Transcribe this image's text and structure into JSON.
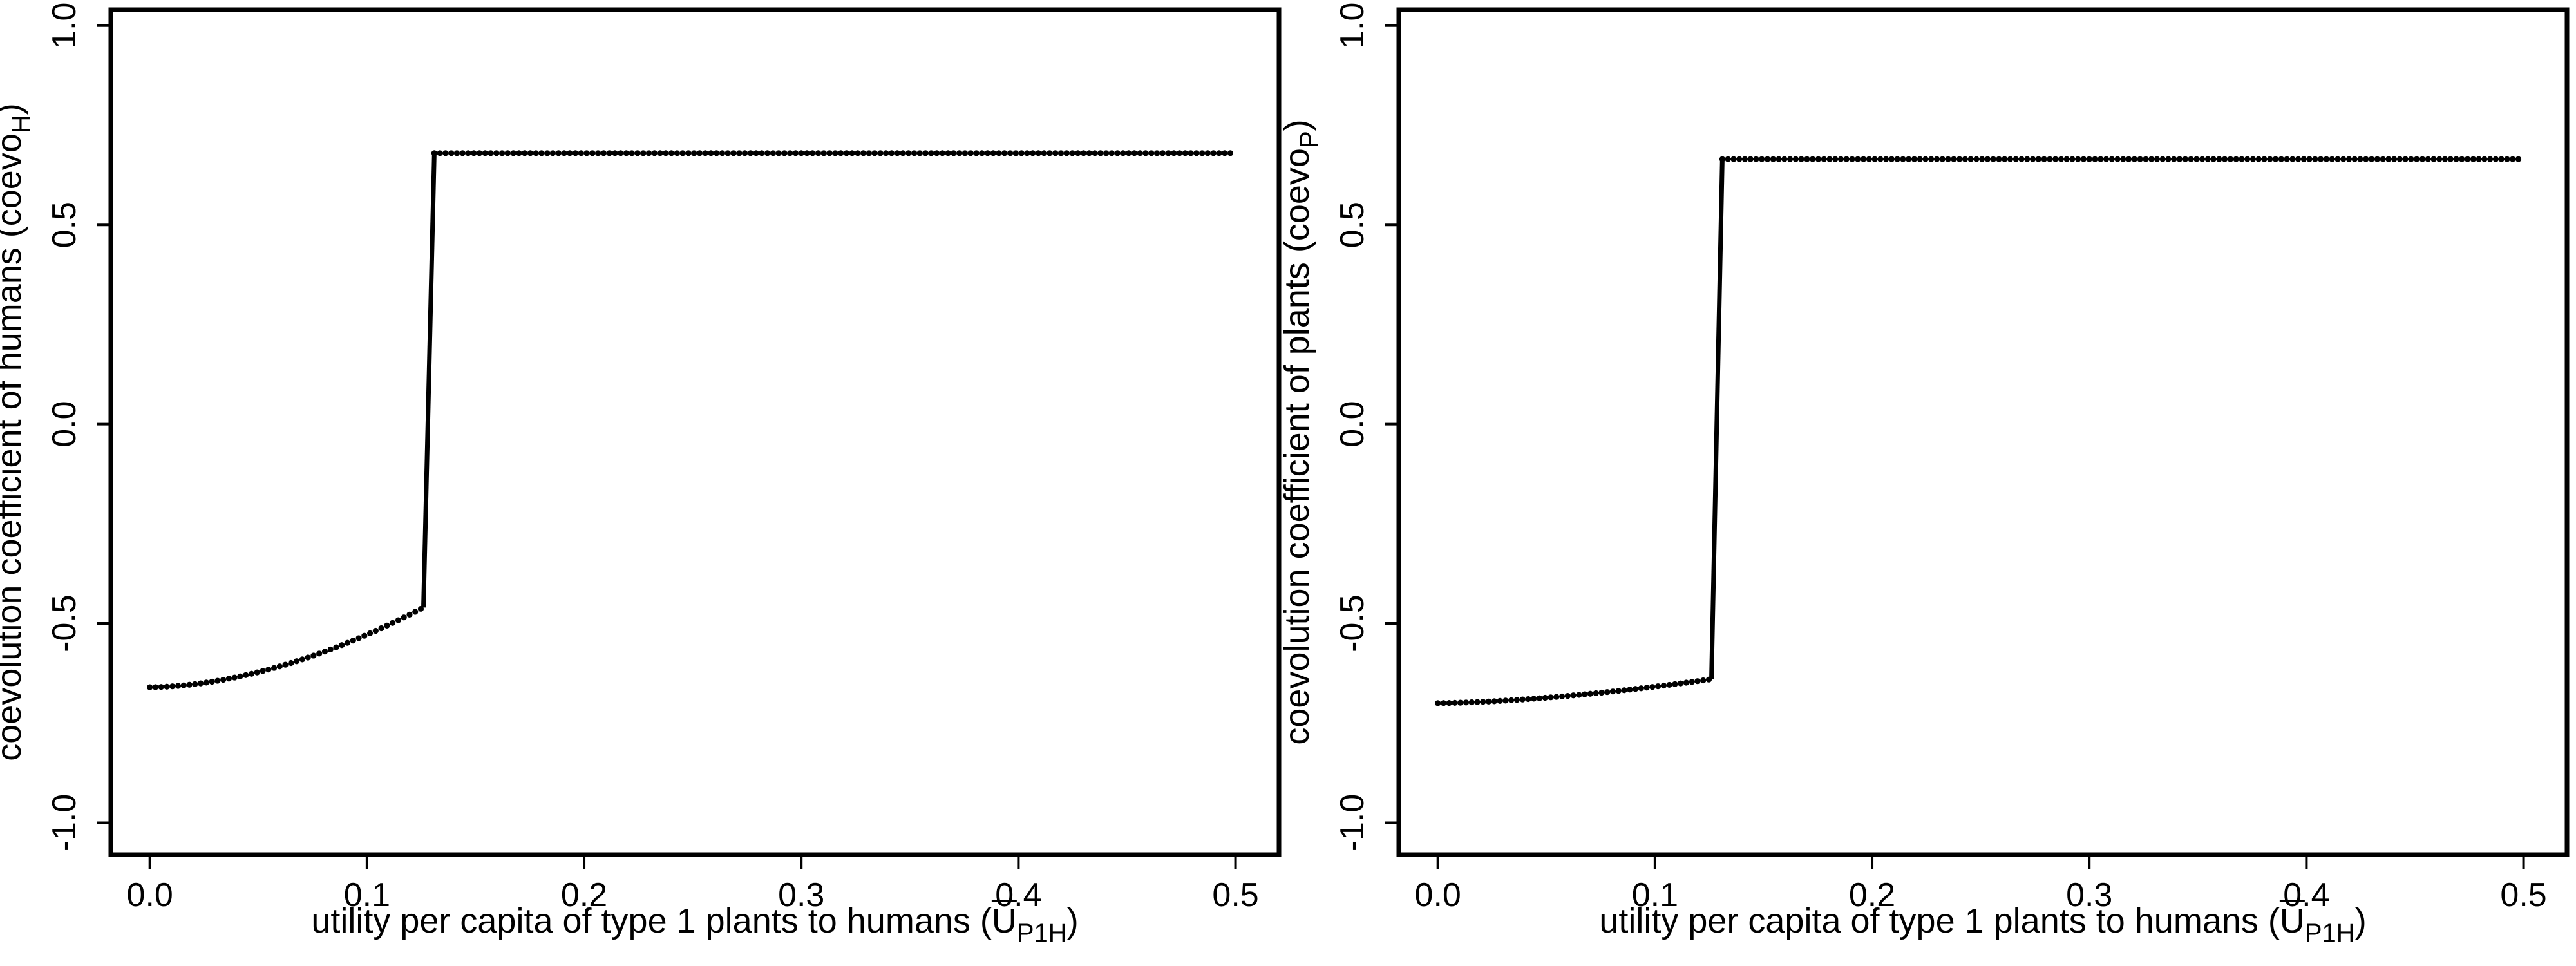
{
  "chart_data": [
    {
      "type": "scatter",
      "style": "dotted points with a connecting solid segment at the jump",
      "xlabel": {
        "main": "utility per capita of type 1 plants to humans (",
        "symbol": "U",
        "sub": "P1H",
        "close": ")"
      },
      "ylabel": {
        "main": "coevolution coefficient of humans (coevo",
        "sub": "H",
        "close": ")"
      },
      "xlim": [
        -0.018,
        0.52
      ],
      "ylim": [
        -1.08,
        1.04
      ],
      "x_ticks": [
        "0.0",
        "0.1",
        "0.2",
        "0.3",
        "0.4",
        "0.5"
      ],
      "y_ticks": [
        "-1.0",
        "-0.5",
        "0.0",
        "0.5",
        "1.0"
      ],
      "grid": false,
      "series": [
        {
          "lower_branch": {
            "x_start": 0.0,
            "x_end": 0.126,
            "y_start": -0.66,
            "y_end": -0.46,
            "curvature": 1.8
          },
          "jump": {
            "x_bottom": 0.126,
            "x_top": 0.131
          },
          "upper_branch": {
            "x_start": 0.131,
            "x_end": 0.5,
            "y": 0.68
          },
          "point_spacing": 0.0026
        }
      ]
    },
    {
      "type": "scatter",
      "style": "dotted points with a connecting solid segment at the jump",
      "xlabel": {
        "main": "utility per capita of type 1 plants to humans (",
        "symbol": "U",
        "sub": "P1H",
        "close": ")"
      },
      "ylabel": {
        "main": "coevolution coefficient of plants (coevo",
        "sub": "P",
        "close": ")"
      },
      "xlim": [
        -0.018,
        0.52
      ],
      "ylim": [
        -1.08,
        1.04
      ],
      "x_ticks": [
        "0.0",
        "0.1",
        "0.2",
        "0.3",
        "0.4",
        "0.5"
      ],
      "y_ticks": [
        "-1.0",
        "-0.5",
        "0.0",
        "0.5",
        "1.0"
      ],
      "grid": false,
      "series": [
        {
          "lower_branch": {
            "x_start": 0.0,
            "x_end": 0.126,
            "y_start": -0.7,
            "y_end": -0.64,
            "curvature": 1.6
          },
          "jump": {
            "x_bottom": 0.126,
            "x_top": 0.131
          },
          "upper_branch": {
            "x_start": 0.131,
            "x_end": 0.5,
            "y": 0.665
          },
          "point_spacing": 0.0026
        }
      ]
    }
  ]
}
